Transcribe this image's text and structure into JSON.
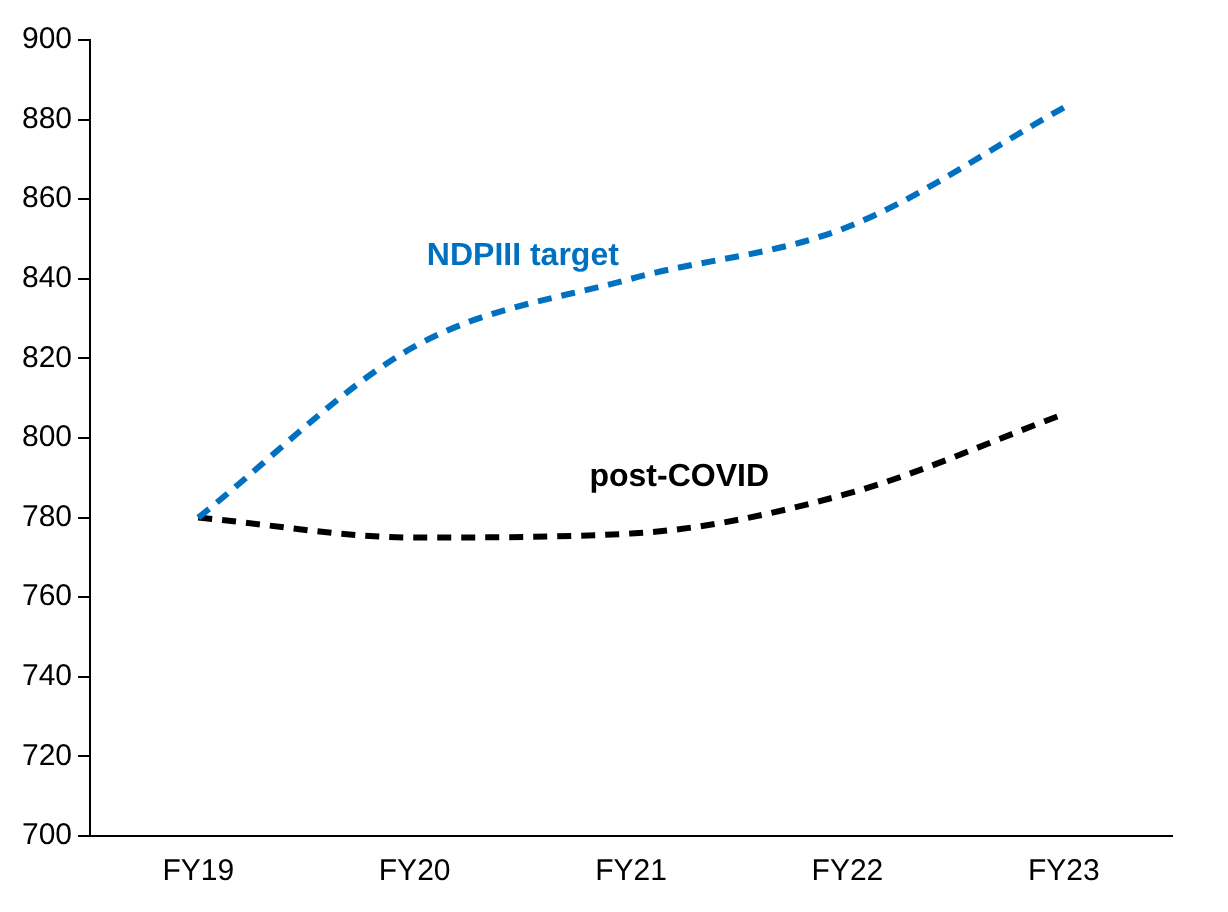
{
  "chart_data": {
    "type": "line",
    "categories": [
      "FY19",
      "FY20",
      "FY21",
      "FY22",
      "FY23"
    ],
    "series": [
      {
        "name": "NDPIII target",
        "color": "#0070c0",
        "values": [
          780,
          823,
          840,
          853,
          883
        ]
      },
      {
        "name": "post-COVID",
        "color": "#000000",
        "values": [
          780,
          775,
          776,
          786,
          806
        ]
      }
    ],
    "ylim": [
      700,
      900
    ],
    "yticks": [
      700,
      720,
      740,
      760,
      780,
      800,
      820,
      840,
      860,
      880,
      900
    ],
    "grid": false,
    "legend": false,
    "marker": "none",
    "line_style": "dashed"
  }
}
